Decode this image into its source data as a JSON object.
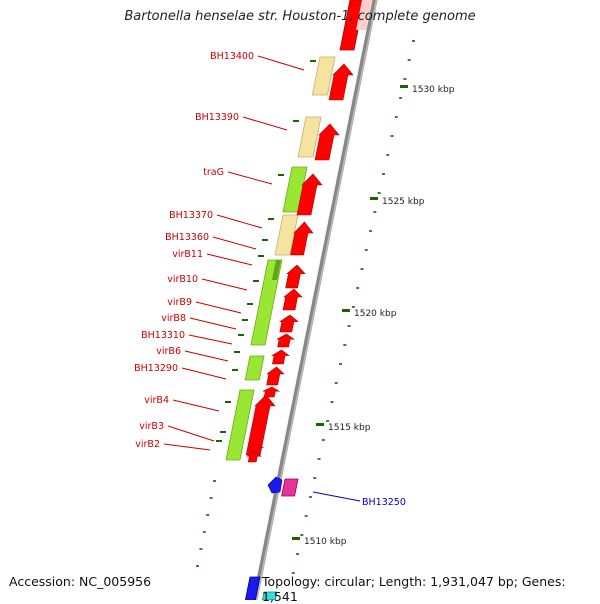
{
  "title": "Bartonella henselae str. Houston-1, complete genome",
  "footer": {
    "accession": "Accession: NC_005956",
    "summary": "Topology: circular; Length: 1,931,047 bp; Genes: 1,541"
  },
  "colors": {
    "gene_label": "#cc0000",
    "highlight_label": "#0000cc",
    "cds_forward": "#ff0000",
    "gene_pale": "#f5e3a0",
    "gene_green": "#99e633",
    "tick": "#1a6600",
    "axis": "#888888"
  },
  "scale": {
    "ticks": [
      {
        "label": "1530 kbp"
      },
      {
        "label": "1525 kbp"
      },
      {
        "label": "1520 kbp"
      },
      {
        "label": "1515 kbp"
      },
      {
        "label": "1510 kbp"
      }
    ]
  },
  "genes": [
    {
      "label": "BH13400"
    },
    {
      "label": "BH13390"
    },
    {
      "label": "traG"
    },
    {
      "label": "BH13370"
    },
    {
      "label": "BH13360"
    },
    {
      "label": "virB11"
    },
    {
      "label": "virB10"
    },
    {
      "label": "virB9"
    },
    {
      "label": "virB8"
    },
    {
      "label": "BH13310"
    },
    {
      "label": "virB6"
    },
    {
      "label": "BH13290"
    },
    {
      "label": "virB4"
    },
    {
      "label": "virB3"
    },
    {
      "label": "virB2"
    },
    {
      "label": "BH13250",
      "highlight": true
    }
  ]
}
